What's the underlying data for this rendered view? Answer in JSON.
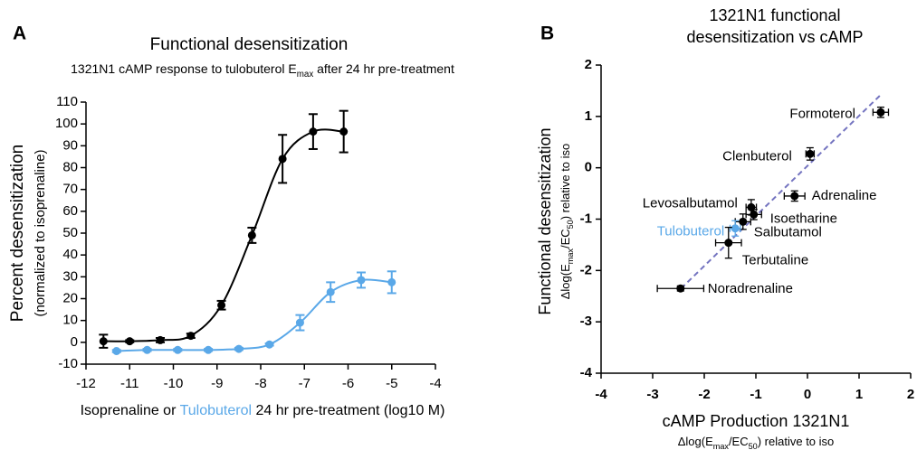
{
  "chart_data": [
    {
      "type": "line",
      "panel": "A",
      "title": "Functional desensitization",
      "subtitle": [
        "1321N1 cAMP response to tulobuterol E",
        "max",
        " after 24 hr pre-treatment"
      ],
      "ylabel": [
        "Percent desensitization",
        "(normalized to isoprenaline)"
      ],
      "xlabel": [
        "Isoprenaline or ",
        "Tulobuterol",
        " 24 hr pre-treatment (log10 M)"
      ],
      "xlim": [
        -12,
        -4
      ],
      "xticks": [
        -12,
        -11,
        -10,
        -9,
        -8,
        -7,
        -6,
        -5,
        -4
      ],
      "ylim": [
        -10,
        110
      ],
      "yticks": [
        -10,
        0,
        10,
        20,
        30,
        40,
        50,
        60,
        70,
        80,
        90,
        100,
        110
      ],
      "series": [
        {
          "color": "#000000",
          "x": [
            -11.6,
            -11,
            -10.3,
            -9.6,
            -8.9,
            -8.2,
            -7.5,
            -6.8,
            -6.1
          ],
          "values": [
            0.5,
            0.5,
            1,
            3,
            17,
            49,
            84,
            96.5,
            96.5
          ],
          "errors": [
            3,
            0.5,
            1,
            1,
            2,
            3.5,
            11,
            8,
            9.5
          ]
        },
        {
          "color": "#5aa8e8",
          "x": [
            -11.3,
            -10.6,
            -9.9,
            -9.2,
            -8.5,
            -7.8,
            -7.1,
            -6.4,
            -5.7,
            -5.0
          ],
          "values": [
            -4,
            -3.5,
            -3.5,
            -3.5,
            -3,
            -1,
            9,
            23,
            28.5,
            27.5
          ],
          "errors": [
            0.5,
            0.5,
            0.5,
            0.5,
            0.5,
            0.5,
            3.5,
            4.5,
            3.5,
            5
          ]
        }
      ]
    },
    {
      "type": "scatter",
      "panel": "B",
      "title": [
        "1321N1 functional",
        "desensitization vs cAMP"
      ],
      "xlabel": [
        "cAMP Production 1321N1"
      ],
      "xlabel_sub": [
        "Δlog(E",
        "max",
        "/EC",
        "50",
        ") relative to iso"
      ],
      "ylabel": [
        "Functional desensitization"
      ],
      "ylabel_sub": [
        "Δlog(E",
        "max",
        "/EC",
        "50",
        ") relative to iso"
      ],
      "xlim": [
        -4,
        2
      ],
      "xticks": [
        -4,
        -3,
        -2,
        -1,
        0,
        1,
        2
      ],
      "ylim": [
        -4,
        2
      ],
      "yticks": [
        -4,
        -3,
        -2,
        -1,
        0,
        1,
        2
      ],
      "trend_line": {
        "color": "#7474c0",
        "x": [
          -2.45,
          1.45
        ],
        "y": [
          -2.35,
          1.45
        ]
      },
      "points": [
        {
          "label": "Formoterol",
          "x": 1.42,
          "y": 1.08,
          "xerr": 0.15,
          "yerr": 0.1,
          "color": "#000000"
        },
        {
          "label": "Clenbuterol",
          "x": 0.05,
          "y": 0.27,
          "xerr": 0.08,
          "yerr": 0.12,
          "color": "#000000"
        },
        {
          "label": "Adrenaline",
          "x": -0.25,
          "y": -0.55,
          "xerr": 0.2,
          "yerr": 0.1,
          "color": "#000000"
        },
        {
          "label": "Levosalbutamol",
          "x": -1.09,
          "y": -0.77,
          "xerr": 0.1,
          "yerr": 0.15,
          "color": "#000000"
        },
        {
          "label": "Isoetharine",
          "x": -1.04,
          "y": -0.91,
          "xerr": 0.15,
          "yerr": 0.1,
          "color": "#000000"
        },
        {
          "label": "Salbutamol",
          "x": -1.25,
          "y": -1.05,
          "xerr": 0.15,
          "yerr": 0.15,
          "color": "#000000"
        },
        {
          "label": "Tulobuterol",
          "x": -1.4,
          "y": -1.18,
          "xerr": 0.1,
          "yerr": 0.15,
          "color": "#5aa8e8"
        },
        {
          "label": "Terbutaline",
          "x": -1.53,
          "y": -1.46,
          "xerr": 0.25,
          "yerr": 0.3,
          "color": "#000000"
        },
        {
          "label": "Noradrenaline",
          "x": -2.46,
          "y": -2.35,
          "xerr": 0.45,
          "yerr": 0.05,
          "color": "#000000"
        }
      ]
    }
  ]
}
